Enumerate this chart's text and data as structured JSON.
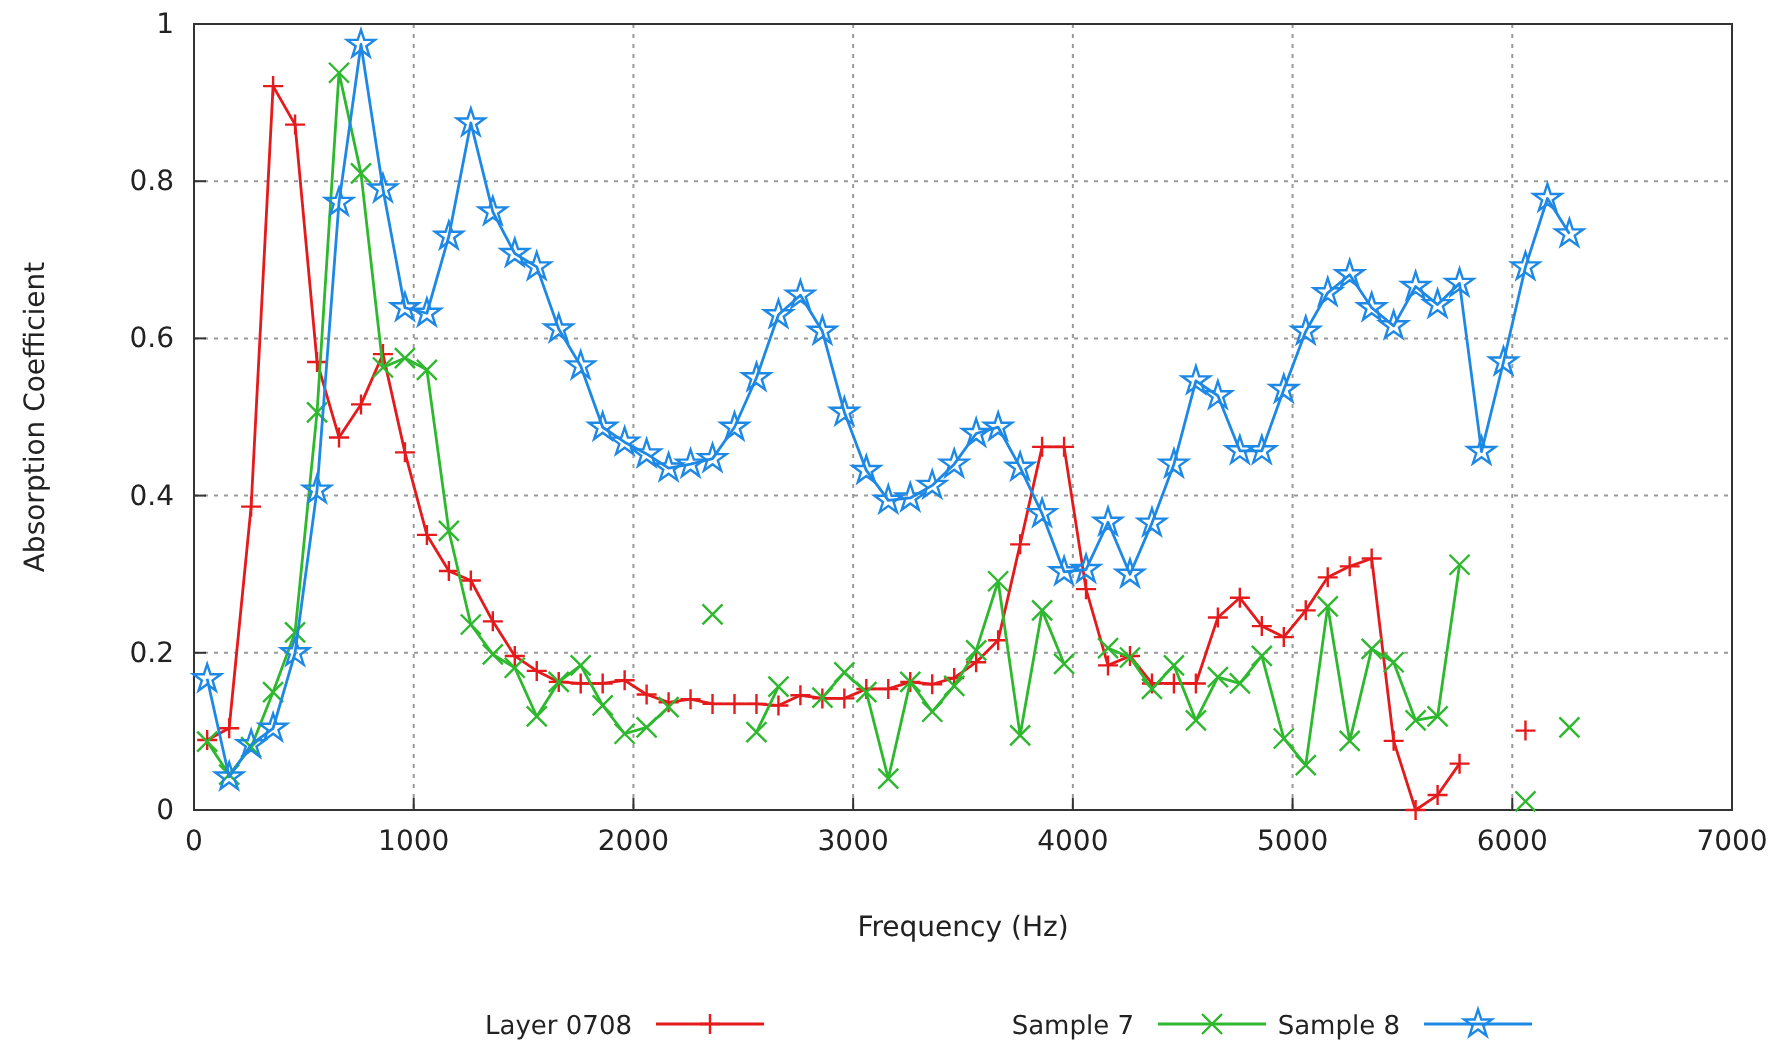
{
  "chart_data": {
    "type": "line",
    "xlabel": "Frequency (Hz)",
    "ylabel": "Absorption Coefficient",
    "x": [
      60,
      160,
      260,
      360,
      460,
      560,
      660,
      760,
      860,
      960,
      1060,
      1160,
      1260,
      1360,
      1460,
      1560,
      1660,
      1760,
      1860,
      1960,
      2060,
      2160,
      2260,
      2360,
      2460,
      2560,
      2660,
      2760,
      2860,
      2960,
      3060,
      3160,
      3260,
      3360,
      3460,
      3560,
      3660,
      3760,
      3860,
      3960,
      4060,
      4160,
      4260,
      4360,
      4460,
      4560,
      4660,
      4760,
      4860,
      4960,
      5060,
      5160,
      5260,
      5360,
      5460,
      5560,
      5660,
      5760,
      5860,
      5960,
      6060,
      6160,
      6260
    ],
    "series": [
      {
        "name": "Layer 0708",
        "color": "#e41a1c",
        "marker": "cross",
        "values": [
          0.089,
          0.104,
          0.386,
          0.921,
          0.872,
          0.57,
          0.474,
          0.516,
          0.58,
          0.455,
          0.35,
          0.304,
          0.292,
          0.24,
          0.196,
          0.177,
          0.163,
          0.161,
          0.161,
          0.165,
          0.147,
          0.137,
          0.141,
          0.135,
          0.135,
          0.135,
          0.133,
          0.146,
          0.142,
          0.142,
          0.154,
          0.154,
          0.163,
          0.16,
          0.168,
          0.188,
          0.216,
          0.338,
          0.462,
          0.462,
          0.281,
          0.184,
          0.196,
          0.161,
          0.161,
          0.161,
          0.245,
          0.27,
          0.234,
          0.22,
          0.254,
          0.296,
          0.31,
          0.32,
          0.088,
          0,
          0.019,
          0.059,
          null,
          null,
          0.101,
          null,
          null
        ]
      },
      {
        "name": "Sample 7",
        "color": "#2eb82e",
        "marker": "x",
        "values": [
          0.087,
          0.045,
          0.08,
          0.15,
          0.226,
          0.506,
          0.938,
          0.81,
          0.563,
          0.575,
          0.56,
          0.355,
          0.236,
          0.198,
          0.181,
          0.119,
          0.163,
          0.184,
          0.133,
          0.097,
          0.105,
          0.131,
          null,
          0.249,
          null,
          0.099,
          0.157,
          null,
          0.143,
          0.175,
          0.15,
          0.04,
          0.163,
          0.125,
          0.158,
          0.203,
          0.291,
          0.095,
          0.254,
          0.186,
          null,
          0.206,
          0.194,
          0.154,
          0.184,
          0.114,
          0.169,
          0.161,
          0.196,
          0.091,
          0.057,
          0.259,
          0.088,
          0.205,
          0.188,
          0.114,
          0.119,
          0.312,
          null,
          null,
          0.011,
          null,
          0.105
        ]
      },
      {
        "name": "Sample 8",
        "color": "#1e88e5",
        "marker": "star",
        "values": [
          0.167,
          0.042,
          0.083,
          0.104,
          0.2,
          0.407,
          0.773,
          0.974,
          0.79,
          0.639,
          0.632,
          0.73,
          0.874,
          0.761,
          0.708,
          0.691,
          0.612,
          0.565,
          0.487,
          0.468,
          0.453,
          0.435,
          0.44,
          0.447,
          0.487,
          0.55,
          0.63,
          0.655,
          0.609,
          0.506,
          0.432,
          0.394,
          0.397,
          0.413,
          0.44,
          0.479,
          0.487,
          0.436,
          0.377,
          0.303,
          0.306,
          0.366,
          0.3,
          0.365,
          0.44,
          0.546,
          0.527,
          0.457,
          0.457,
          0.535,
          0.609,
          0.658,
          0.681,
          0.639,
          0.616,
          0.666,
          0.643,
          0.67,
          0.456,
          0.57,
          0.691,
          0.778,
          0.733
        ]
      }
    ],
    "xlim": [
      0,
      7000
    ],
    "xticks": [
      0,
      1000,
      2000,
      3000,
      4000,
      5000,
      6000,
      7000
    ],
    "ylim": [
      0,
      1
    ],
    "yticks": [
      0,
      0.2,
      0.4,
      0.6,
      0.8,
      1
    ],
    "grid": true,
    "legend": "bottom",
    "line_style": "solid"
  }
}
